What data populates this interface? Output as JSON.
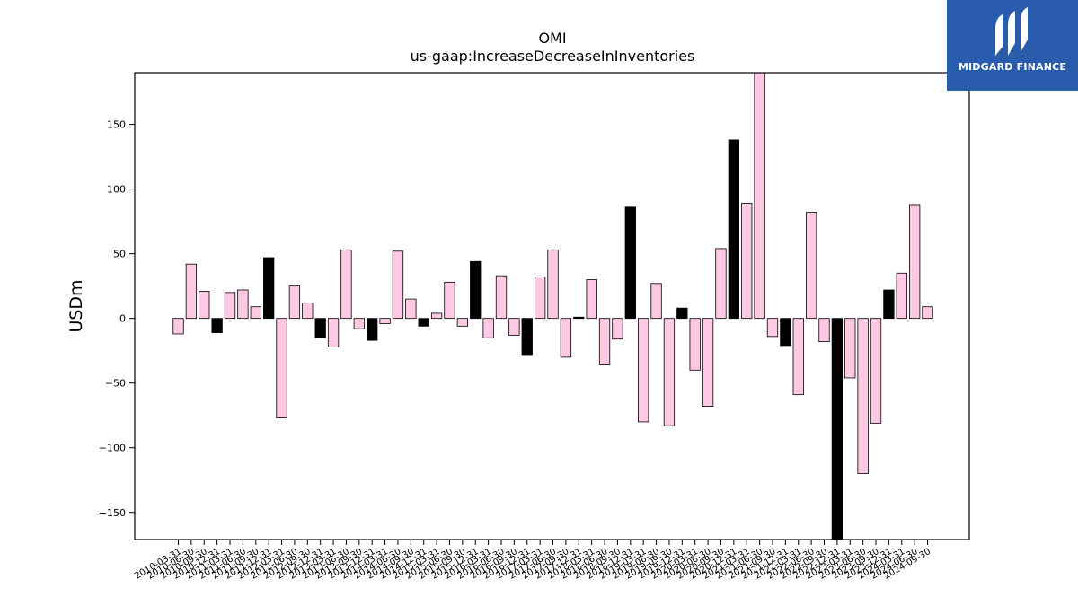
{
  "logo": {
    "text": "MIDGARD FINANCE",
    "color": "#2a5cad"
  },
  "colors": {
    "pink": "#ffc8e3",
    "black": "#000000"
  },
  "chart_data": {
    "type": "bar",
    "title": "OMI",
    "subtitle": "us-gaap:IncreaseDecreaseInInventories",
    "xlabel": "",
    "ylabel": "USDm",
    "ylim": [
      -171,
      190
    ],
    "yticks": [
      -150,
      -100,
      -50,
      0,
      50,
      100,
      150
    ],
    "grid": false,
    "categories": [
      "2010-03-31",
      "2010-06-30",
      "2010-09-30",
      "2010-12-31",
      "2011-03-31",
      "2011-06-30",
      "2011-09-30",
      "2011-12-31",
      "2012-03-31",
      "2012-06-30",
      "2012-09-30",
      "2012-12-31",
      "2013-03-31",
      "2013-06-30",
      "2013-09-30",
      "2013-12-31",
      "2014-03-31",
      "2014-06-30",
      "2014-09-30",
      "2014-12-31",
      "2015-03-31",
      "2015-06-30",
      "2015-09-30",
      "2015-12-31",
      "2016-03-31",
      "2016-06-30",
      "2016-09-30",
      "2016-12-31",
      "2017-03-31",
      "2017-06-30",
      "2017-09-30",
      "2017-12-31",
      "2018-03-31",
      "2018-06-30",
      "2018-09-30",
      "2018-12-31",
      "2019-03-31",
      "2019-06-30",
      "2019-09-30",
      "2019-12-31",
      "2020-03-31",
      "2020-06-30",
      "2020-09-30",
      "2020-12-31",
      "2021-03-31",
      "2021-06-30",
      "2021-09-30",
      "2021-12-31",
      "2022-03-31",
      "2022-06-30",
      "2022-09-30",
      "2022-12-31",
      "2023-03-31",
      "2023-06-30",
      "2023-09-30",
      "2023-12-31",
      "2024-03-31",
      "2024-06-30",
      "2024-09-30"
    ],
    "values": [
      -12,
      42,
      21,
      -11,
      20,
      22,
      9,
      47,
      -77,
      25,
      12,
      -15,
      -22,
      53,
      -8,
      -17,
      -4,
      52,
      15,
      -6,
      4,
      28,
      -6,
      44,
      -15,
      33,
      -13,
      -28,
      32,
      53,
      -30,
      1,
      30,
      -36,
      -16,
      86,
      -80,
      27,
      -83,
      8,
      -40,
      -68,
      54,
      138,
      89,
      190,
      -14,
      -21,
      -59,
      82,
      -18,
      -171,
      -46,
      -120,
      -81,
      22,
      35,
      88,
      9
    ],
    "q4": [
      false,
      false,
      false,
      true,
      false,
      false,
      false,
      true,
      false,
      false,
      false,
      true,
      false,
      false,
      false,
      true,
      false,
      false,
      false,
      true,
      false,
      false,
      false,
      true,
      false,
      false,
      false,
      true,
      false,
      false,
      false,
      true,
      false,
      false,
      false,
      true,
      false,
      false,
      false,
      true,
      false,
      false,
      false,
      true,
      false,
      false,
      false,
      true,
      false,
      false,
      false,
      true,
      false,
      false,
      false,
      true,
      false,
      false,
      false
    ]
  }
}
